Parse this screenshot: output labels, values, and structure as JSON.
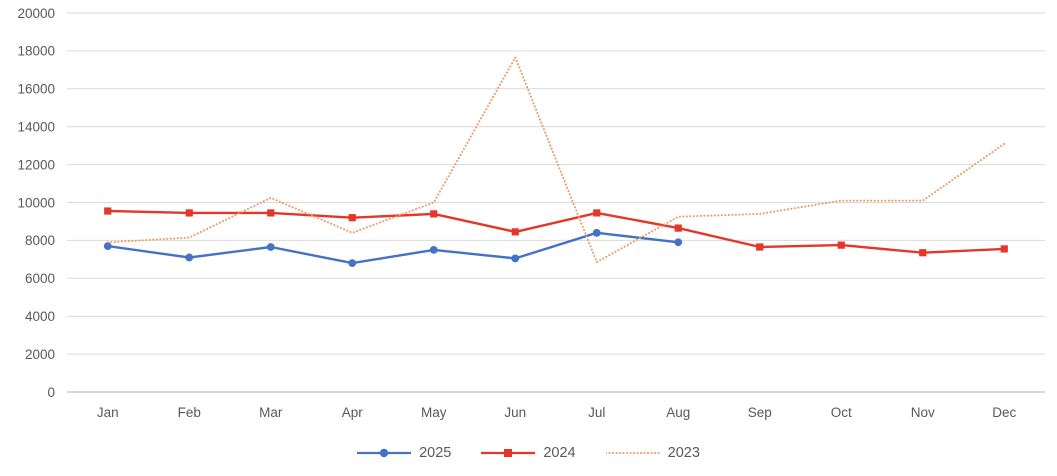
{
  "chart_data": {
    "type": "line",
    "title": "",
    "categories": [
      "Jan",
      "Feb",
      "Mar",
      "Apr",
      "May",
      "Jun",
      "Jul",
      "Aug",
      "Sep",
      "Oct",
      "Nov",
      "Dec"
    ],
    "y_ticks": [
      0,
      2000,
      4000,
      6000,
      8000,
      10000,
      12000,
      14000,
      16000,
      18000,
      20000
    ],
    "ylim": [
      0,
      20000
    ],
    "grid": "horizontal",
    "legend_position": "bottom-center",
    "series": [
      {
        "name": "2025",
        "color": "#4472C4",
        "marker": "circle",
        "line_style": "solid",
        "values": [
          7700,
          7100,
          7650,
          6800,
          7500,
          7050,
          8400,
          7900,
          null,
          null,
          null,
          null
        ]
      },
      {
        "name": "2024",
        "color": "#E5362B",
        "marker": "square",
        "line_style": "solid",
        "values": [
          9550,
          9450,
          9450,
          9200,
          9400,
          8450,
          9450,
          8650,
          7650,
          7750,
          7350,
          7550
        ]
      },
      {
        "name": "2023",
        "color": "#ED9A60",
        "marker": "none",
        "line_style": "dotted",
        "values": [
          7900,
          8150,
          10250,
          8400,
          10000,
          17650,
          6850,
          9250,
          9400,
          10100,
          10100,
          13100
        ]
      }
    ]
  },
  "colors": {
    "gridline": "#D9D9D9",
    "axis_line": "#BFBFBF",
    "tick_text": "#595959"
  }
}
